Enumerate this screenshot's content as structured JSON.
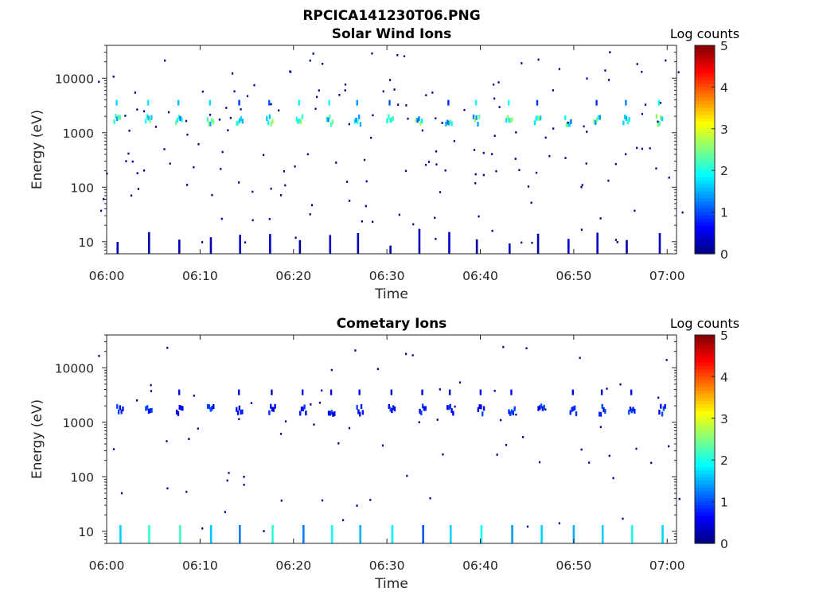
{
  "figure": {
    "filename": "RPCICA141230T06.PNG"
  },
  "colors": {
    "dark_blue": "#00008f",
    "blue": "#0050ff",
    "cyan": "#00e0ff",
    "green_yellow": "#9aff60",
    "yellow": "#ffee00"
  },
  "chart_data": [
    {
      "type": "heatmap",
      "title": "Solar Wind Ions",
      "xlabel": "Time",
      "ylabel": "Energy (eV)",
      "y_scale": "log",
      "ylim": [
        6,
        40000
      ],
      "xlim": [
        "06:00",
        "07:01"
      ],
      "x_ticks": [
        "06:00",
        "06:10",
        "06:20",
        "06:30",
        "06:40",
        "06:50",
        "07:00"
      ],
      "y_ticks": [
        "10",
        "100",
        "1000",
        "10000"
      ],
      "colorbar": {
        "label": "Log counts",
        "min": 0,
        "max": 5,
        "ticks": [
          "0",
          "1",
          "2",
          "3",
          "4",
          "5"
        ]
      },
      "sweep_times_min": [
        1.0,
        4.5,
        7.7,
        10.9,
        14.1,
        17.3,
        20.5,
        23.7,
        26.9,
        30.1,
        33.3,
        36.5,
        39.7,
        42.9,
        46.1,
        49.3,
        52.5,
        55.7,
        58.9
      ],
      "main_band_energy_ev": 1700,
      "secondary_band_energy_ev": 3600,
      "main_band_level": 2.0,
      "secondary_band_level": 1.5,
      "low_energy_level": 0.3
    },
    {
      "type": "heatmap",
      "title": "Cometary Ions",
      "xlabel": "Time",
      "ylabel": "Energy (eV)",
      "y_scale": "log",
      "ylim": [
        6,
        40000
      ],
      "xlim": [
        "06:00",
        "07:01"
      ],
      "x_ticks": [
        "06:00",
        "06:10",
        "06:20",
        "06:30",
        "06:40",
        "06:50",
        "07:00"
      ],
      "y_ticks": [
        "10",
        "100",
        "1000",
        "10000"
      ],
      "colorbar": {
        "label": "Log counts",
        "min": 0,
        "max": 5,
        "ticks": [
          "0",
          "1",
          "2",
          "3",
          "4",
          "5"
        ]
      },
      "sweep_times_min": [
        1.3,
        4.6,
        7.8,
        11.1,
        14.3,
        17.5,
        20.8,
        24.0,
        27.2,
        30.4,
        33.6,
        36.9,
        40.1,
        43.3,
        46.5,
        49.7,
        53.0,
        56.2,
        59.4
      ],
      "main_band_energy_ev": 1700,
      "secondary_band_energy_ev": 3600,
      "main_band_level": 0.8,
      "secondary_band_level": 0.5,
      "low_energy_level": 1.7
    }
  ]
}
